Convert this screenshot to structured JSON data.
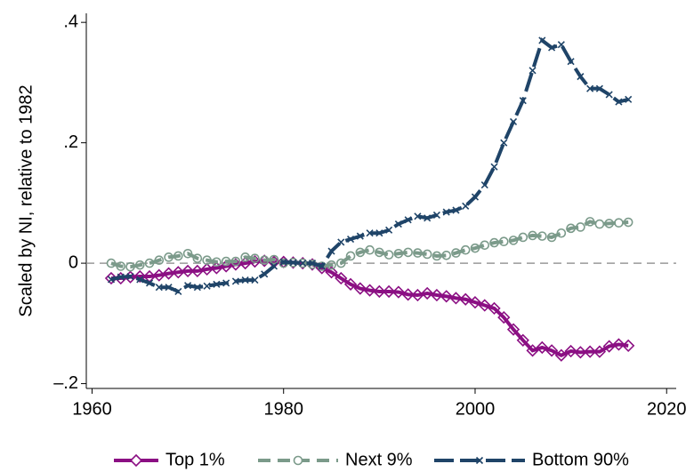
{
  "chart_data": {
    "type": "line",
    "ylabel": "Scaled by NI, relative to 1982",
    "x": [
      1962,
      1963,
      1964,
      1965,
      1966,
      1967,
      1968,
      1969,
      1970,
      1971,
      1972,
      1973,
      1974,
      1975,
      1976,
      1977,
      1978,
      1979,
      1980,
      1981,
      1982,
      1983,
      1984,
      1985,
      1986,
      1987,
      1988,
      1989,
      1990,
      1991,
      1992,
      1993,
      1994,
      1995,
      1996,
      1997,
      1998,
      1999,
      2000,
      2001,
      2002,
      2003,
      2004,
      2005,
      2006,
      2007,
      2008,
      2009,
      2010,
      2011,
      2012,
      2013,
      2014,
      2015,
      2016
    ],
    "series": [
      {
        "name": "Top 1%",
        "color": "#8b0f83",
        "marker": "diamond",
        "dash": "solid",
        "values": [
          -0.025,
          -0.025,
          -0.023,
          -0.022,
          -0.022,
          -0.02,
          -0.017,
          -0.015,
          -0.013,
          -0.013,
          -0.01,
          -0.008,
          -0.005,
          -0.002,
          0.0,
          0.003,
          0.004,
          0.002,
          0.002,
          0.001,
          0,
          -0.002,
          -0.008,
          -0.015,
          -0.025,
          -0.035,
          -0.042,
          -0.045,
          -0.047,
          -0.047,
          -0.048,
          -0.052,
          -0.053,
          -0.05,
          -0.053,
          -0.055,
          -0.058,
          -0.06,
          -0.065,
          -0.07,
          -0.075,
          -0.09,
          -0.11,
          -0.128,
          -0.145,
          -0.14,
          -0.145,
          -0.153,
          -0.146,
          -0.148,
          -0.147,
          -0.147,
          -0.138,
          -0.135,
          -0.137
        ]
      },
      {
        "name": "Next 9%",
        "color": "#7b9a8a",
        "marker": "circle",
        "dash": "dashed",
        "values": [
          0.0,
          -0.005,
          -0.006,
          -0.003,
          0.0,
          0.005,
          0.01,
          0.012,
          0.016,
          0.008,
          0.005,
          0.002,
          0.003,
          0.003,
          0.01,
          0.008,
          0.005,
          0.006,
          0.0,
          0.001,
          0,
          -0.002,
          -0.005,
          -0.003,
          0.0,
          0.012,
          0.018,
          0.022,
          0.018,
          0.014,
          0.016,
          0.018,
          0.017,
          0.015,
          0.012,
          0.013,
          0.017,
          0.022,
          0.025,
          0.03,
          0.034,
          0.036,
          0.038,
          0.043,
          0.046,
          0.045,
          0.043,
          0.05,
          0.058,
          0.06,
          0.069,
          0.065,
          0.066,
          0.067,
          0.068
        ]
      },
      {
        "name": "Bottom 90%",
        "color": "#1f4468",
        "marker": "x",
        "dash": "longdash",
        "values": [
          -0.027,
          -0.023,
          -0.022,
          -0.027,
          -0.033,
          -0.04,
          -0.04,
          -0.047,
          -0.037,
          -0.04,
          -0.038,
          -0.035,
          -0.033,
          -0.03,
          -0.028,
          -0.028,
          -0.018,
          -0.005,
          0.002,
          0.001,
          0,
          0.0,
          -0.005,
          0.02,
          0.035,
          0.04,
          0.045,
          0.05,
          0.05,
          0.055,
          0.065,
          0.072,
          0.078,
          0.075,
          0.08,
          0.085,
          0.088,
          0.095,
          0.11,
          0.13,
          0.16,
          0.2,
          0.235,
          0.27,
          0.32,
          0.37,
          0.358,
          0.363,
          0.335,
          0.31,
          0.29,
          0.29,
          0.28,
          0.268,
          0.272
        ]
      }
    ],
    "reference_line": 0,
    "xlim": [
      1959.4,
      2021
    ],
    "ylim": [
      -0.208,
      0.415
    ],
    "xticks": [
      1960,
      1980,
      2000,
      2020
    ],
    "yticks": [
      {
        "value": -0.2,
        "label": "–.2"
      },
      0,
      {
        "value": 0.2,
        "label": ".2"
      },
      {
        "value": 0.4,
        "label": ".4"
      }
    ],
    "legend": "bottom"
  }
}
